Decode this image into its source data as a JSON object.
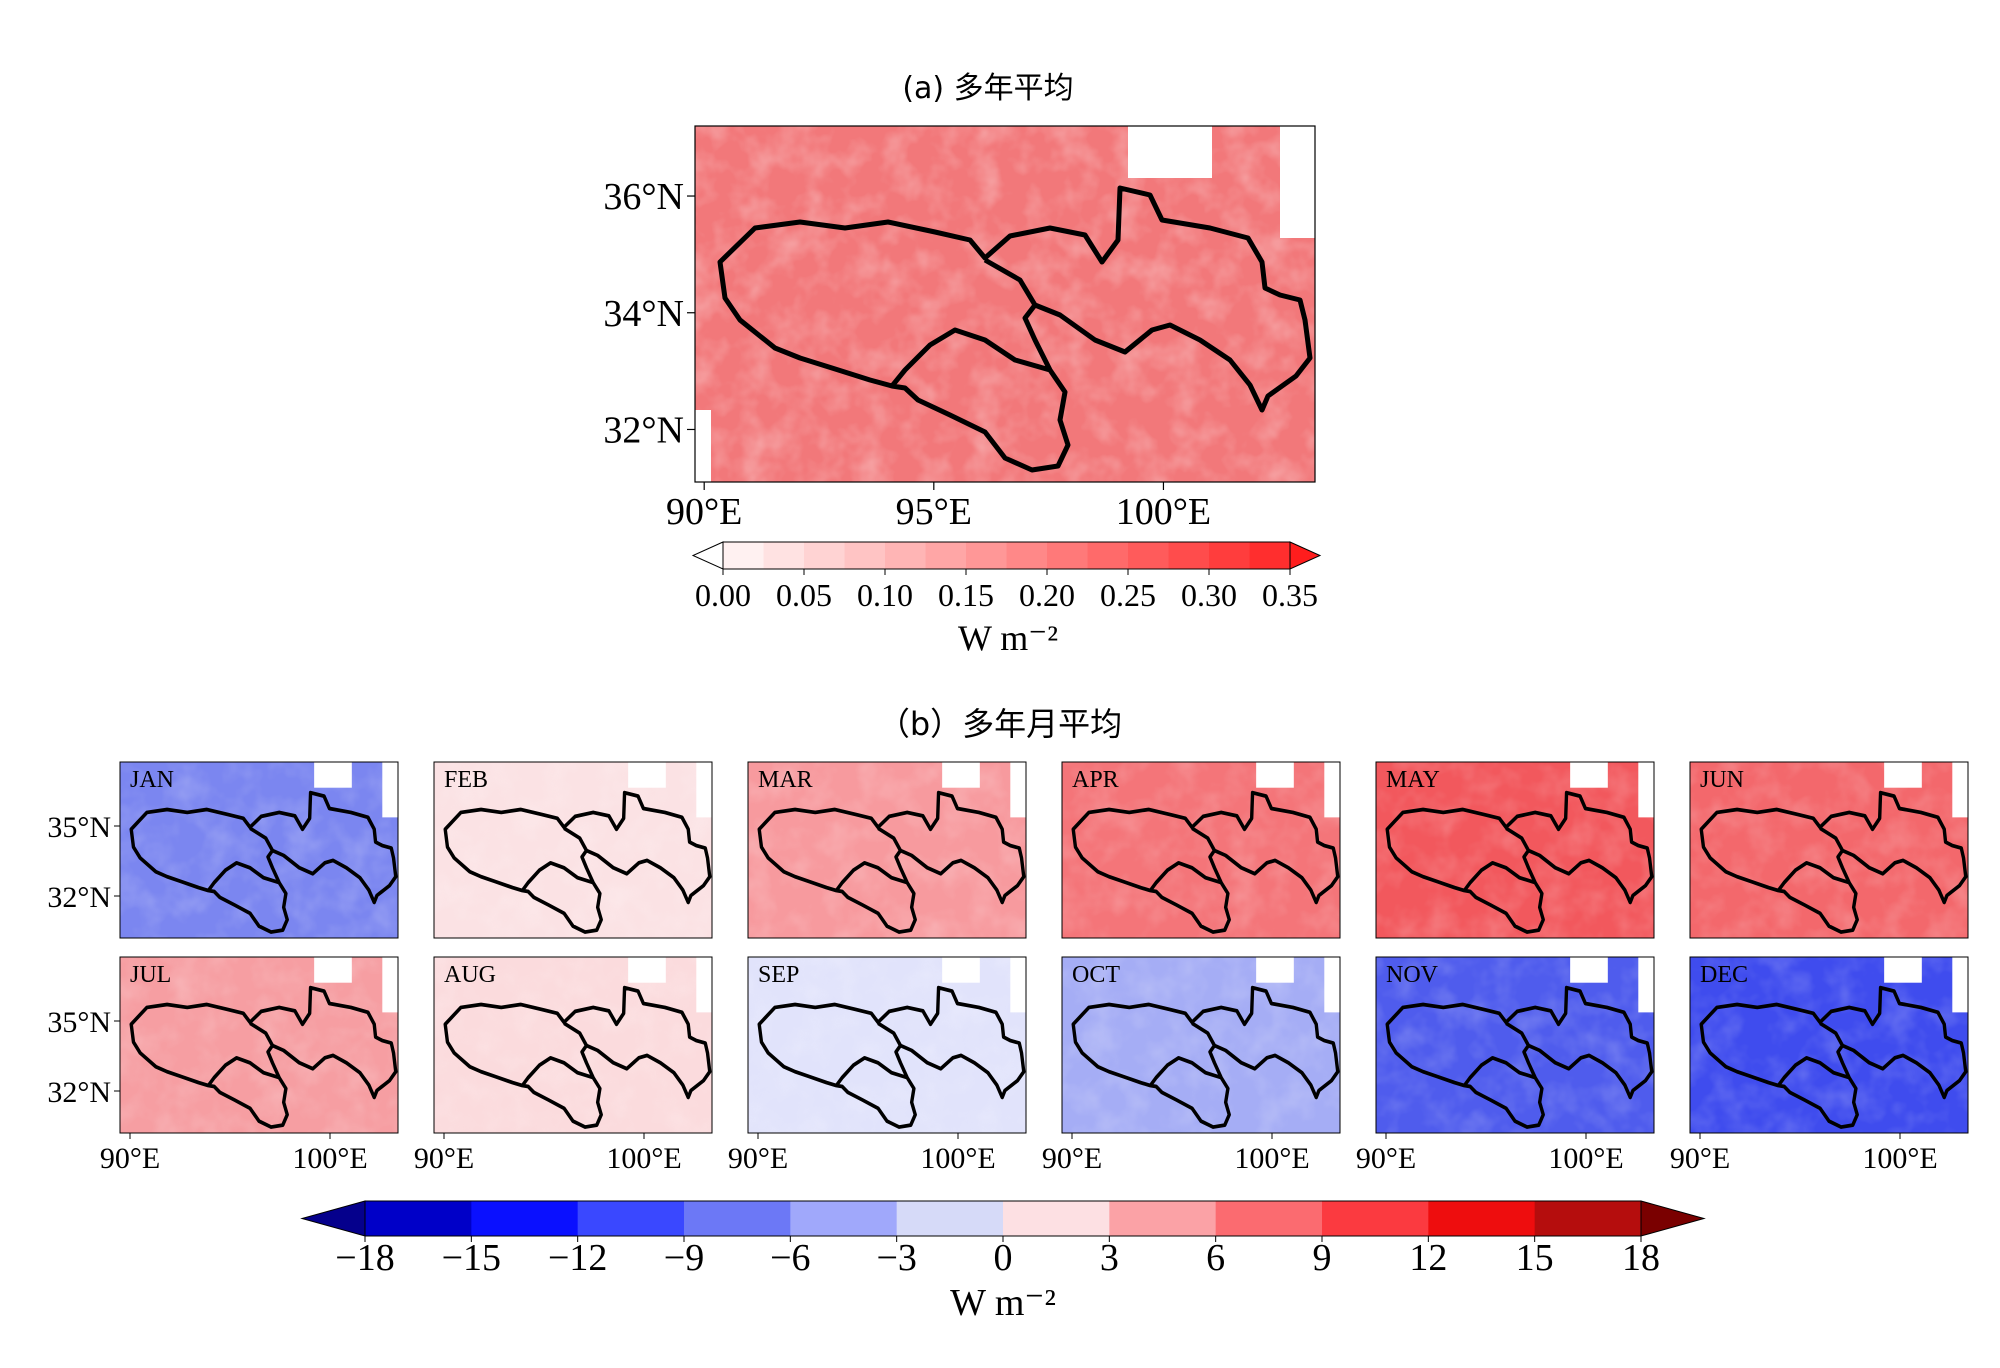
{
  "chart_data": [
    {
      "type": "heatmap",
      "title": "(a) 多年平均",
      "x_ticks": [
        "90°E",
        "95°E",
        "100°E"
      ],
      "y_ticks": [
        "36°N",
        "34°N",
        "32°N"
      ],
      "xlim": [
        89.8,
        103.3
      ],
      "ylim": [
        31.1,
        37.2
      ],
      "colorbar": {
        "ticks": [
          "0.00",
          "0.05",
          "0.10",
          "0.15",
          "0.20",
          "0.25",
          "0.30",
          "0.35"
        ],
        "levels": [
          0,
          0.025,
          0.05,
          0.075,
          0.1,
          0.125,
          0.15,
          0.175,
          0.2,
          0.225,
          0.25,
          0.275,
          0.3,
          0.325,
          0.35
        ],
        "colors": [
          "#fff1f1",
          "#ffe2e2",
          "#ffd3d3",
          "#ffc4c4",
          "#ffb5b5",
          "#ffa6a6",
          "#ff9797",
          "#ff8888",
          "#ff7979",
          "#ff6a6a",
          "#ff5b5b",
          "#ff4c4c",
          "#ff3d3d",
          "#ff2e2e"
        ],
        "label": "W m⁻²",
        "extend": "both"
      },
      "field_mean": 0.2,
      "mean_color": "#f2787a"
    },
    {
      "type": "heatmap",
      "title": "（b）多年月平均",
      "panels": [
        {
          "month": "JAN",
          "color": "#7b86f0"
        },
        {
          "month": "FEB",
          "color": "#fbe2e4"
        },
        {
          "month": "MAR",
          "color": "#f79a9e"
        },
        {
          "month": "APR",
          "color": "#f47579"
        },
        {
          "month": "MAY",
          "color": "#f2585d"
        },
        {
          "month": "JUN",
          "color": "#f3686c"
        },
        {
          "month": "JUL",
          "color": "#f69ea2"
        },
        {
          "month": "AUG",
          "color": "#fbdbdd"
        },
        {
          "month": "SEP",
          "color": "#e1e3fb"
        },
        {
          "month": "OCT",
          "color": "#a5adf5"
        },
        {
          "month": "NOV",
          "color": "#4f5ced"
        },
        {
          "month": "DEC",
          "color": "#3f4cee"
        }
      ],
      "x_ticks": [
        "90°E",
        "100°E"
      ],
      "y_ticks": [
        "35°N",
        "32°N"
      ],
      "colorbar": {
        "ticks": [
          "−18",
          "−15",
          "−12",
          "−9",
          "−6",
          "−3",
          "0",
          "3",
          "6",
          "9",
          "12",
          "15",
          "18"
        ],
        "colors": [
          "#0000c8",
          "#0a10ff",
          "#3a48ff",
          "#6c78f6",
          "#a0a8fb",
          "#d6daf8",
          "#fde0e3",
          "#fba2a6",
          "#fb6b70",
          "#fb3a40",
          "#ee0d0e",
          "#b50d0d"
        ],
        "under_color": "#05008c",
        "over_color": "#7a0000",
        "label": "W m⁻²",
        "extend": "both"
      }
    }
  ]
}
